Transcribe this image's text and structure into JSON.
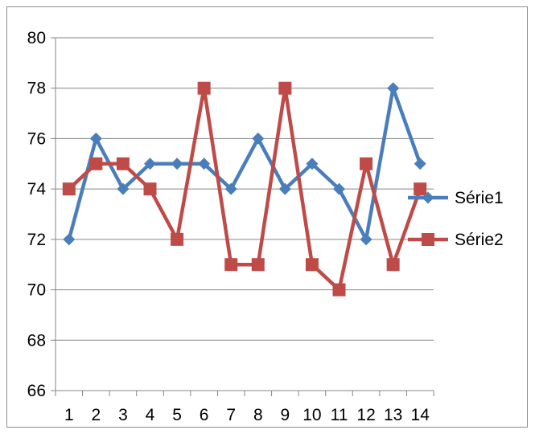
{
  "chart_data": {
    "type": "line",
    "categories": [
      "1",
      "2",
      "3",
      "4",
      "5",
      "6",
      "7",
      "8",
      "9",
      "10",
      "11",
      "12",
      "13",
      "14"
    ],
    "series": [
      {
        "name": "Série1",
        "color": "#4a7ebb",
        "marker": "diamond",
        "values": [
          72,
          76,
          74,
          75,
          75,
          75,
          74,
          76,
          74,
          75,
          74,
          72,
          78,
          75
        ]
      },
      {
        "name": "Série2",
        "color": "#be4b48",
        "marker": "square",
        "values": [
          74,
          75,
          75,
          74,
          72,
          78,
          71,
          71,
          78,
          71,
          70,
          75,
          71,
          74
        ]
      }
    ],
    "ylim": [
      66,
      80
    ],
    "yticks": [
      "66",
      "68",
      "70",
      "72",
      "74",
      "76",
      "78",
      "80"
    ],
    "grid": "horizontal",
    "legend_position": "right"
  }
}
